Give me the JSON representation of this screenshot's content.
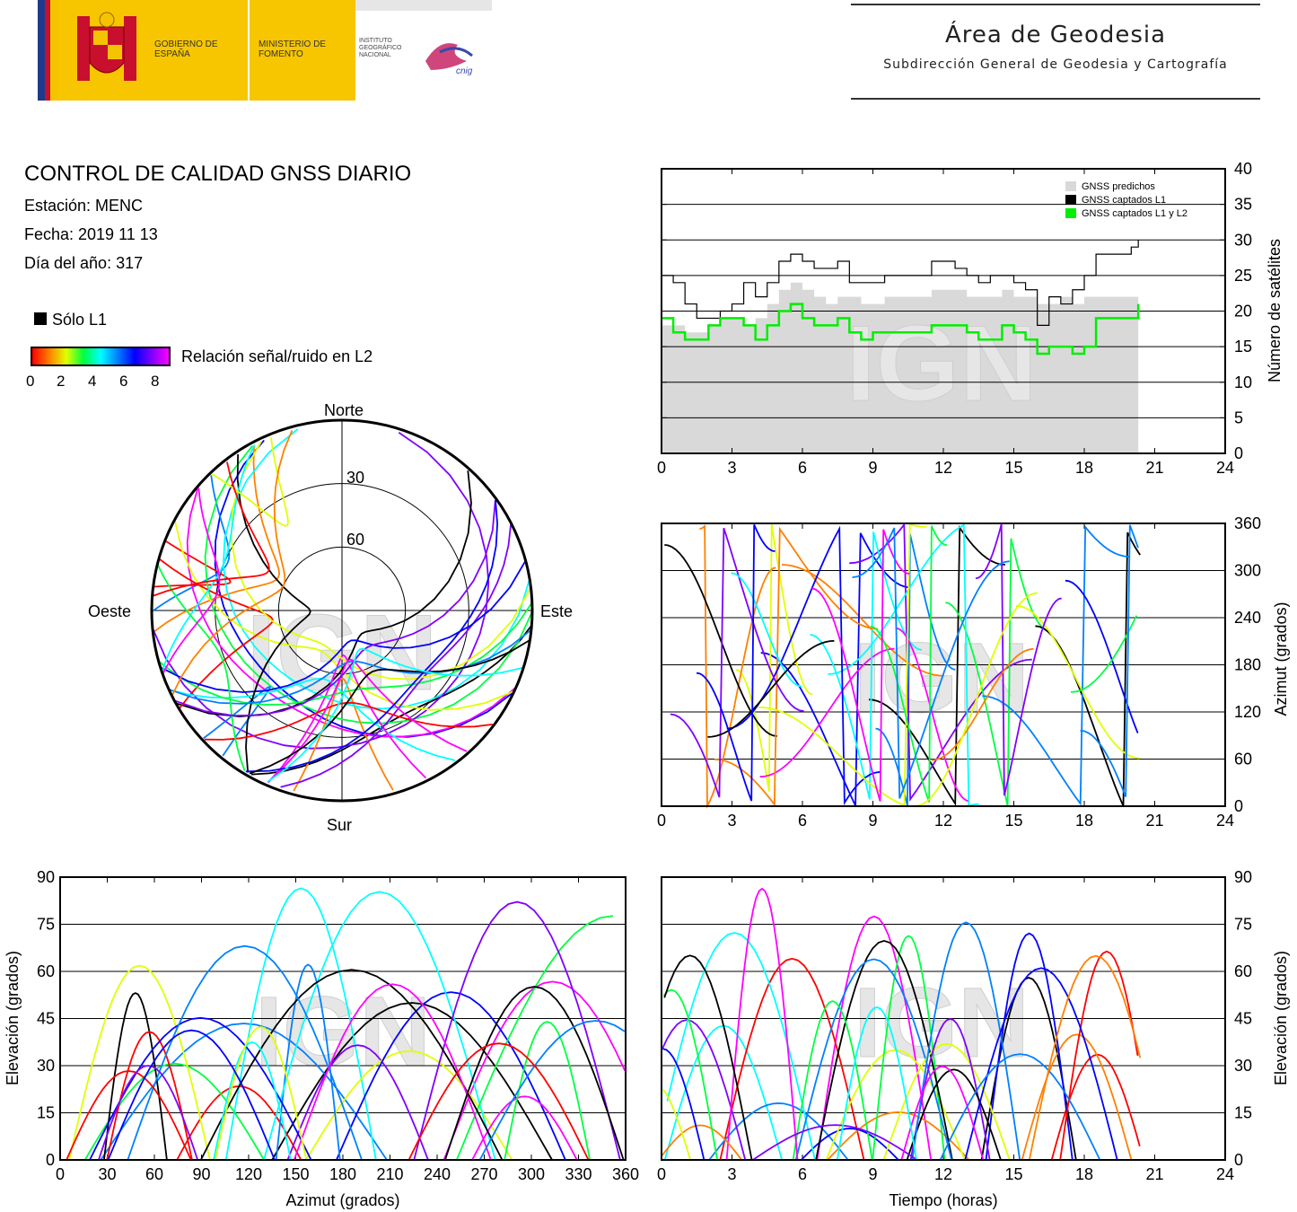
{
  "header": {
    "gov_name": "Gobierno de España",
    "ministry_name": "Ministerio de Fomento",
    "institute_name": "Instituto Geográfico Nacional",
    "cnig_label": "cnig",
    "area_title": "Área de Geodesia",
    "area_subtitle": "Subdirección General de Geodesia y Cartografía"
  },
  "report": {
    "title": "CONTROL DE CALIDAD GNSS DIARIO",
    "station": "Estación: MENC",
    "date": "Fecha: 2019 11 13",
    "day_of_year": "Día del año: 317",
    "solo_l1": "Sólo L1",
    "snr_label": "Relación señal/ruido en L2",
    "snr_ticks": [
      "0",
      "2",
      "4",
      "6",
      "8"
    ]
  },
  "watermark": "IGN",
  "colors": {
    "predicted": "#d9d9d9",
    "l1": "#000000",
    "l1l2": "#00ee00",
    "snr_scale": [
      "#ff0000",
      "#ff8000",
      "#e0ff00",
      "#00ff40",
      "#00ffff",
      "#0080ff",
      "#0000ff",
      "#8000ff",
      "#ff00ff"
    ]
  },
  "chart_data": [
    {
      "id": "sat_count",
      "type": "line",
      "xlabel": "",
      "ylabel": "Número de satélites",
      "xlim": [
        0,
        24
      ],
      "ylim": [
        0,
        40
      ],
      "xticks": [
        "0",
        "3",
        "6",
        "9",
        "12",
        "15",
        "18",
        "21",
        "24"
      ],
      "yticks": [
        "0",
        "5",
        "10",
        "15",
        "20",
        "25",
        "30",
        "35",
        "40"
      ],
      "legend": [
        "GNSS predichos",
        "GNSS captados L1",
        "GNSS captados L1 y L2"
      ],
      "legend_position": "top-right",
      "grid": "horizontal",
      "x": [
        0,
        0.5,
        1,
        1.5,
        2,
        2.5,
        3,
        3.5,
        4,
        4.5,
        5,
        5.5,
        6,
        6.5,
        7,
        7.5,
        8,
        8.5,
        9,
        9.5,
        10,
        10.5,
        11,
        11.5,
        12,
        12.5,
        13,
        13.5,
        14,
        14.5,
        15,
        15.5,
        16,
        16.5,
        17,
        17.5,
        18,
        18.5,
        19,
        19.5,
        20,
        20.3
      ],
      "series": [
        {
          "name": "GNSS predichos",
          "values": [
            18,
            18,
            17,
            17,
            18,
            19,
            19,
            18,
            19,
            21,
            23,
            24,
            23,
            22,
            21,
            22,
            22,
            21,
            21,
            22,
            22,
            22,
            22,
            23,
            23,
            23,
            22,
            22,
            22,
            23,
            22,
            22,
            21,
            21,
            22,
            21,
            22,
            22,
            22,
            22,
            22,
            23
          ]
        },
        {
          "name": "GNSS captados L1",
          "values": [
            25,
            24,
            21,
            19,
            19,
            20,
            21,
            24,
            22,
            24,
            27,
            28,
            27,
            26,
            26,
            27,
            24,
            24,
            24,
            25,
            25,
            25,
            25,
            27,
            27,
            26,
            25,
            24,
            25,
            25,
            24,
            23,
            18,
            22,
            21,
            23,
            25,
            28,
            28,
            28,
            29,
            30
          ]
        },
        {
          "name": "GNSS captados L1 y L2",
          "values": [
            19,
            17,
            16,
            16,
            18,
            19,
            19,
            18,
            16,
            18,
            20,
            21,
            19,
            18,
            18,
            19,
            17,
            16,
            17,
            17,
            17,
            17,
            17,
            18,
            18,
            18,
            17,
            16,
            16,
            18,
            17,
            16,
            14,
            15,
            15,
            14,
            15,
            19,
            19,
            19,
            19,
            21
          ]
        }
      ]
    },
    {
      "id": "azimuth_time",
      "type": "scatter",
      "xlabel": "",
      "ylabel": "Azimut (grados)",
      "xlim": [
        0,
        24
      ],
      "ylim": [
        0,
        360
      ],
      "xticks": [
        "0",
        "3",
        "6",
        "9",
        "12",
        "15",
        "18",
        "21",
        "24"
      ],
      "yticks": [
        "0",
        "60",
        "120",
        "180",
        "240",
        "300",
        "360"
      ],
      "grid": "horizontal"
    },
    {
      "id": "skyplot",
      "type": "scatter",
      "directions": {
        "north": "Norte",
        "south": "Sur",
        "west": "Oeste",
        "east": "Este"
      },
      "ring_labels": [
        "30",
        "60"
      ]
    },
    {
      "id": "elev_azimuth",
      "type": "scatter",
      "xlabel": "Azimut (grados)",
      "ylabel": "Elevación (grados)",
      "xlim": [
        0,
        360
      ],
      "ylim": [
        0,
        90
      ],
      "xticks": [
        "0",
        "30",
        "60",
        "90",
        "120",
        "150",
        "180",
        "210",
        "240",
        "270",
        "300",
        "330",
        "360"
      ],
      "yticks": [
        "0",
        "15",
        "30",
        "45",
        "60",
        "75",
        "90"
      ],
      "grid": "horizontal"
    },
    {
      "id": "elev_time",
      "type": "scatter",
      "xlabel": "Tiempo (horas)",
      "ylabel": "Elevación (grados)",
      "xlim": [
        0,
        24
      ],
      "ylim": [
        0,
        90
      ],
      "xticks": [
        "0",
        "3",
        "6",
        "9",
        "12",
        "15",
        "18",
        "21",
        "24"
      ],
      "yticks": [
        "0",
        "15",
        "30",
        "45",
        "60",
        "75",
        "90"
      ],
      "grid": "horizontal"
    }
  ]
}
